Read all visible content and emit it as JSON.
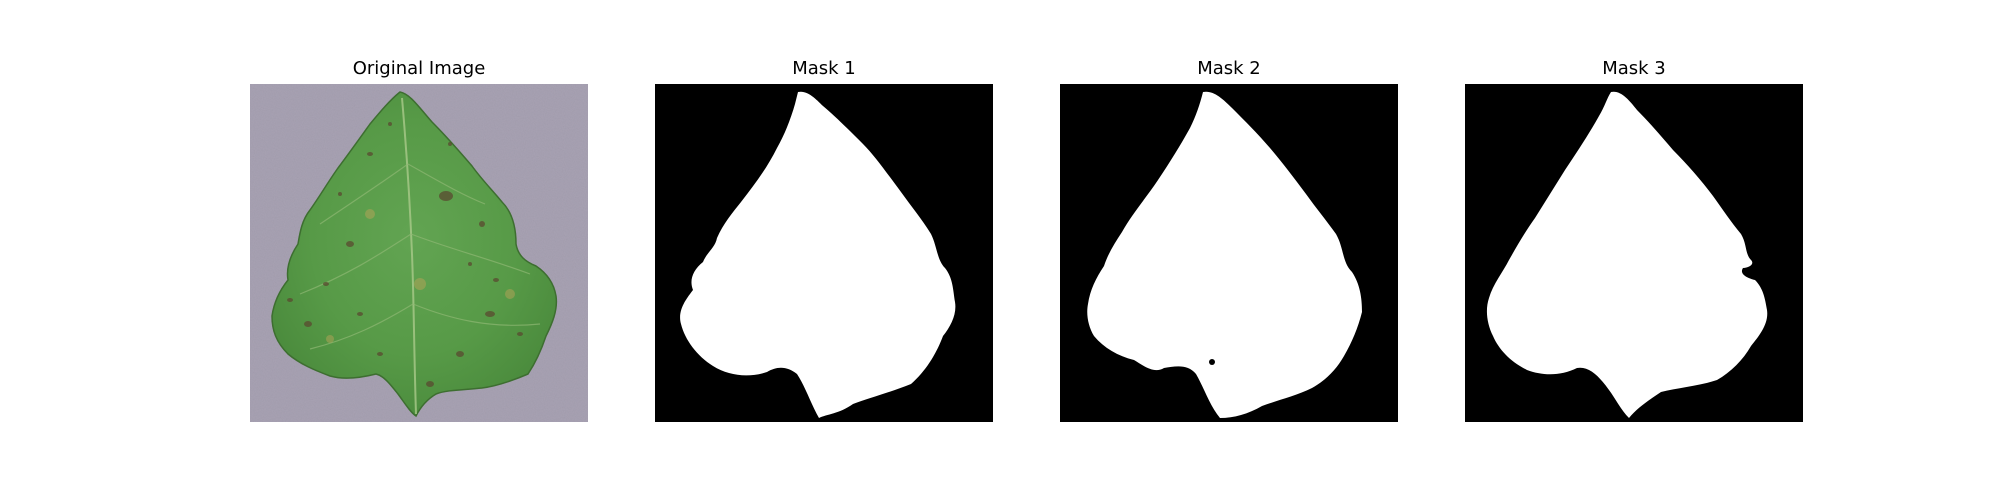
{
  "figure": {
    "panels": [
      {
        "title": "Original Image"
      },
      {
        "title": "Mask 1"
      },
      {
        "title": "Mask 2"
      },
      {
        "title": "Mask 3"
      }
    ]
  },
  "colors": {
    "background": "#ffffff",
    "mask_background": "#000000",
    "mask_foreground": "#ffffff",
    "photo_backdrop": "#a59fb0",
    "leaf_green": "#5a9a4a",
    "leaf_dark_green": "#3f7a35",
    "lesion_brown": "#5a4a30"
  }
}
